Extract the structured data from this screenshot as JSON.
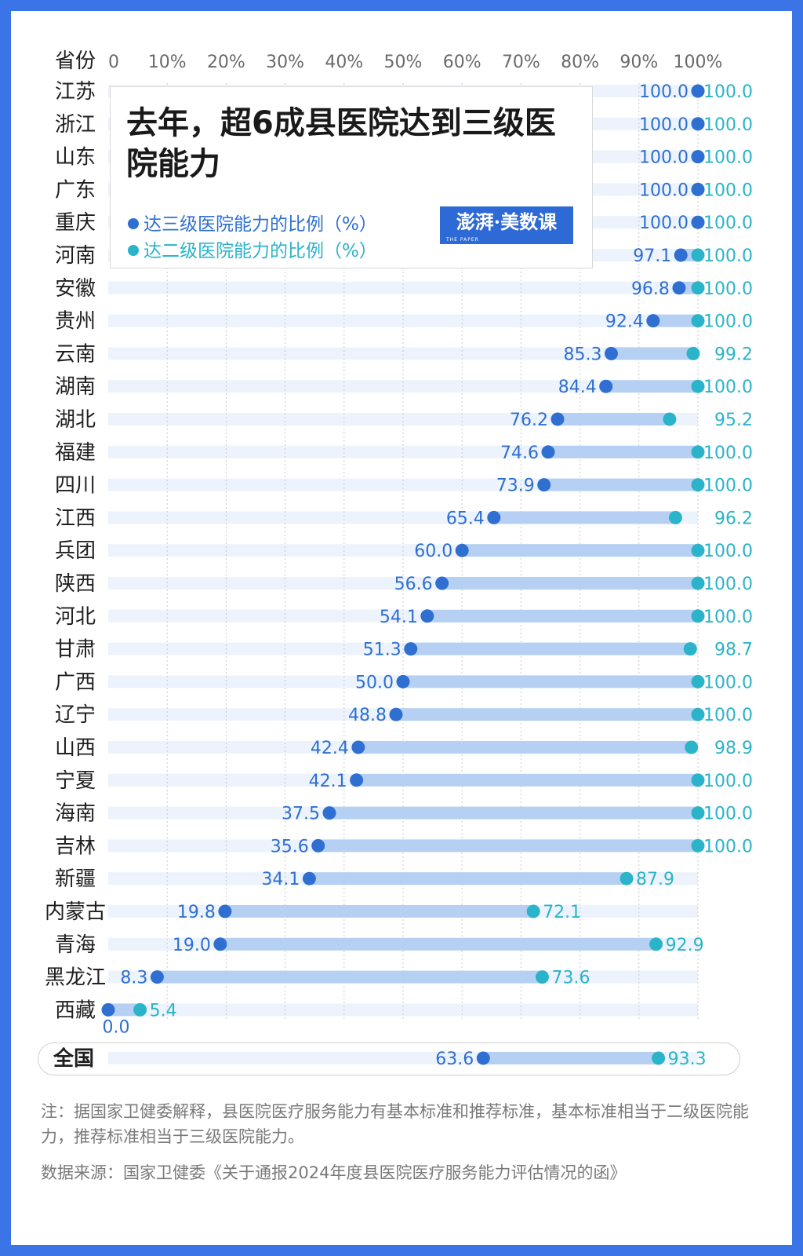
{
  "title": "去年，超6成县医院达到三级医院能力",
  "legend": {
    "tertiary": "达三级医院能力的比例（%）",
    "secondary": "达二级医院能力的比例（%）"
  },
  "brand": "澎湃·美数课",
  "brand_sub": "THE PAPER",
  "colors": {
    "tertiary": "#2f6fd1",
    "secondary": "#2bb3c9",
    "bar": "#b5d0f2",
    "band": "#edf3fc",
    "frame": "#3a74e6"
  },
  "note": "注：据国家卫健委解释，县医院医疗服务能力有基本标准和推荐标准，基本标准相当于二级医院能力，推荐标准相当于三级医院能力。",
  "source": "数据来源：国家卫健委《关于通报2024年度县医院医疗服务能力评估情况的函》",
  "chart_data": {
    "type": "dumbbell",
    "title": "去年，超6成县医院达到三级医院能力",
    "category_axis_label": "省份",
    "xlim": [
      0,
      100
    ],
    "tick_labels": [
      "0",
      "10%",
      "20%",
      "30%",
      "40%",
      "50%",
      "60%",
      "70%",
      "80%",
      "90%",
      "100%"
    ],
    "categories": [
      "江苏",
      "浙江",
      "山东",
      "广东",
      "重庆",
      "河南",
      "安徽",
      "贵州",
      "云南",
      "湖南",
      "湖北",
      "福建",
      "四川",
      "江西",
      "兵团",
      "陕西",
      "河北",
      "甘肃",
      "广西",
      "辽宁",
      "山西",
      "宁夏",
      "海南",
      "吉林",
      "新疆",
      "内蒙古",
      "青海",
      "黑龙江",
      "西藏"
    ],
    "series": [
      {
        "name": "达三级医院能力的比例（%）",
        "values": [
          100.0,
          100.0,
          100.0,
          100.0,
          100.0,
          97.1,
          96.8,
          92.4,
          85.3,
          84.4,
          76.2,
          74.6,
          73.9,
          65.4,
          60.0,
          56.6,
          54.1,
          51.3,
          50.0,
          48.8,
          42.4,
          42.1,
          37.5,
          35.6,
          34.1,
          19.8,
          19.0,
          8.3,
          0.0
        ]
      },
      {
        "name": "达二级医院能力的比例（%）",
        "values": [
          100.0,
          100.0,
          100.0,
          100.0,
          100.0,
          100.0,
          100.0,
          100.0,
          99.2,
          100.0,
          95.2,
          100.0,
          100.0,
          96.2,
          100.0,
          100.0,
          100.0,
          98.7,
          100.0,
          100.0,
          98.9,
          100.0,
          100.0,
          100.0,
          87.9,
          72.1,
          92.9,
          73.6,
          5.4
        ]
      }
    ],
    "national": {
      "label": "全国",
      "tertiary": 63.6,
      "secondary": 93.3
    }
  }
}
